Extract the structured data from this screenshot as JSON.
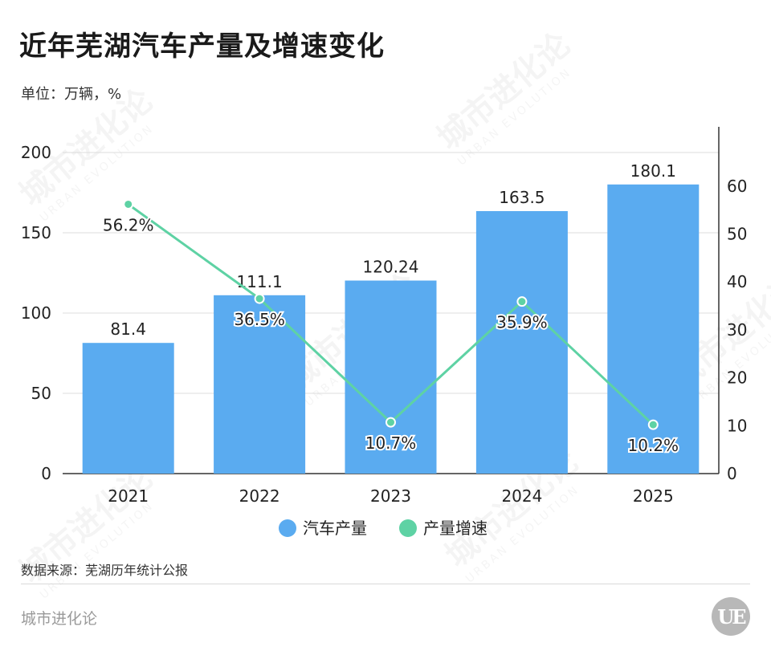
{
  "title": "近年芜湖汽车产量及增速变化",
  "unit_label": "单位：万辆，%",
  "source": "数据来源：芜湖历年统计公报",
  "footer_brand": "城市进化论",
  "logo_text": "UE",
  "watermark": {
    "main": "城市进化论",
    "sub": "URBAN EVOLUTION"
  },
  "colors": {
    "bar": "#5aabf0",
    "line": "#5ed2a4",
    "axis": "#333333",
    "grid": "#dcdcdc"
  },
  "chart_data": {
    "type": "bar",
    "categories": [
      "2021",
      "2022",
      "2023",
      "2024",
      "2025"
    ],
    "series": [
      {
        "name": "汽车产量",
        "type": "bar",
        "axis": "left",
        "values": [
          81.4,
          111.1,
          120.24,
          163.5,
          180.1
        ],
        "labels": [
          "81.4",
          "111.1",
          "120.24",
          "163.5",
          "180.1"
        ]
      },
      {
        "name": "产量增速",
        "type": "line",
        "axis": "right",
        "values": [
          56.2,
          36.5,
          10.7,
          35.9,
          10.2
        ],
        "labels": [
          "56.2%",
          "36.5%",
          "10.7%",
          "35.9%",
          "10.2%"
        ]
      }
    ],
    "y_left": {
      "ylim": [
        0,
        200
      ],
      "ticks": [
        0,
        50,
        100,
        150,
        200
      ]
    },
    "y_right": {
      "ylim": [
        0,
        67
      ],
      "ticks": [
        0,
        10,
        20,
        30,
        40,
        50,
        60
      ]
    },
    "grid": true,
    "legend": "bottom"
  }
}
